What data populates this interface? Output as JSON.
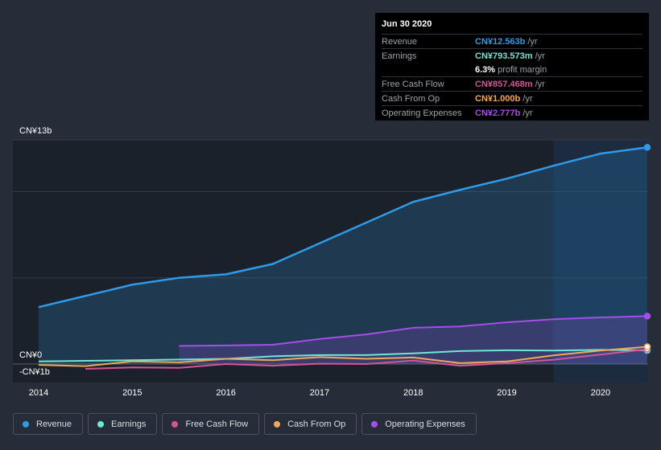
{
  "tooltip": {
    "date": "Jun 30 2020",
    "rows": [
      {
        "label": "Revenue",
        "value": "CN¥12.563b",
        "unit": "/yr",
        "color": "#2f9be8"
      },
      {
        "label": "Earnings",
        "value": "CN¥793.573m",
        "unit": "/yr",
        "color": "#6ee7d5"
      },
      {
        "label": "",
        "value": "6.3%",
        "unit": "profit margin",
        "color": "#ffffff"
      },
      {
        "label": "Free Cash Flow",
        "value": "CN¥857.468m",
        "unit": "/yr",
        "color": "#d6539a"
      },
      {
        "label": "Cash From Op",
        "value": "CN¥1.000b",
        "unit": "/yr",
        "color": "#eea95a"
      },
      {
        "label": "Operating Expenses",
        "value": "CN¥2.777b",
        "unit": "/yr",
        "color": "#a54ee8"
      }
    ]
  },
  "legend": [
    {
      "label": "Revenue",
      "color": "#2f9be8"
    },
    {
      "label": "Earnings",
      "color": "#6ee7d5"
    },
    {
      "label": "Free Cash Flow",
      "color": "#d6539a"
    },
    {
      "label": "Cash From Op",
      "color": "#eea95a"
    },
    {
      "label": "Operating Expenses",
      "color": "#a54ee8"
    }
  ],
  "chart_data": {
    "type": "area",
    "title": "",
    "xlabel": "",
    "ylabel": "",
    "unit": "CN¥ billions",
    "ylim": [
      -1,
      13
    ],
    "xlim": [
      2014,
      2020.5
    ],
    "y_labels": [
      {
        "value": 13,
        "text": "CN¥13b"
      },
      {
        "value": 0,
        "text": "CN¥0"
      },
      {
        "value": -1,
        "text": "-CN¥1b"
      }
    ],
    "x_ticks": [
      {
        "value": 2014,
        "label": "2014"
      },
      {
        "value": 2015,
        "label": "2015"
      },
      {
        "value": 2016,
        "label": "2016"
      },
      {
        "value": 2017,
        "label": "2017"
      },
      {
        "value": 2018,
        "label": "2018"
      },
      {
        "value": 2019,
        "label": "2019"
      },
      {
        "value": 2020,
        "label": "2020"
      }
    ],
    "highlight_from": 2019.5,
    "series": [
      {
        "name": "Revenue",
        "color": "#2f9be8",
        "fill": true,
        "points": [
          [
            2014,
            3.3
          ],
          [
            2014.5,
            3.95
          ],
          [
            2015,
            4.6
          ],
          [
            2015.5,
            5.0
          ],
          [
            2016,
            5.2
          ],
          [
            2016.5,
            5.8
          ],
          [
            2017,
            7.0
          ],
          [
            2017.5,
            8.2
          ],
          [
            2018,
            9.4
          ],
          [
            2018.5,
            10.1
          ],
          [
            2019,
            10.75
          ],
          [
            2019.5,
            11.5
          ],
          [
            2020,
            12.2
          ],
          [
            2020.5,
            12.563
          ]
        ]
      },
      {
        "name": "Operating Expenses",
        "color": "#a54ee8",
        "fill": true,
        "points": [
          [
            2015.5,
            1.05
          ],
          [
            2016,
            1.08
          ],
          [
            2016.5,
            1.12
          ],
          [
            2017,
            1.45
          ],
          [
            2017.5,
            1.72
          ],
          [
            2018,
            2.1
          ],
          [
            2018.5,
            2.18
          ],
          [
            2019,
            2.42
          ],
          [
            2019.5,
            2.6
          ],
          [
            2020,
            2.7
          ],
          [
            2020.5,
            2.777
          ]
        ]
      },
      {
        "name": "Earnings",
        "color": "#6ee7d5",
        "fill": false,
        "points": [
          [
            2014,
            0.15
          ],
          [
            2015,
            0.22
          ],
          [
            2016,
            0.3
          ],
          [
            2016.5,
            0.45
          ],
          [
            2017,
            0.52
          ],
          [
            2017.5,
            0.52
          ],
          [
            2018,
            0.62
          ],
          [
            2018.5,
            0.75
          ],
          [
            2019,
            0.8
          ],
          [
            2019.5,
            0.78
          ],
          [
            2020,
            0.82
          ],
          [
            2020.5,
            0.794
          ]
        ]
      },
      {
        "name": "Free Cash Flow",
        "color": "#d6539a",
        "fill": false,
        "points": [
          [
            2014.5,
            -0.28
          ],
          [
            2015,
            -0.2
          ],
          [
            2015.5,
            -0.22
          ],
          [
            2016,
            0.0
          ],
          [
            2016.5,
            -0.1
          ],
          [
            2017,
            0.02
          ],
          [
            2017.5,
            0.0
          ],
          [
            2018,
            0.2
          ],
          [
            2018.5,
            -0.1
          ],
          [
            2019,
            0.05
          ],
          [
            2019.5,
            0.25
          ],
          [
            2020,
            0.55
          ],
          [
            2020.5,
            0.857
          ]
        ]
      },
      {
        "name": "Cash From Op",
        "color": "#eea95a",
        "fill": false,
        "points": [
          [
            2014,
            -0.05
          ],
          [
            2014.5,
            -0.12
          ],
          [
            2015,
            0.15
          ],
          [
            2015.5,
            0.1
          ],
          [
            2016,
            0.3
          ],
          [
            2016.5,
            0.22
          ],
          [
            2017,
            0.4
          ],
          [
            2017.5,
            0.3
          ],
          [
            2018,
            0.38
          ],
          [
            2018.5,
            0.05
          ],
          [
            2019,
            0.15
          ],
          [
            2019.5,
            0.5
          ],
          [
            2020,
            0.78
          ],
          [
            2020.5,
            1.0
          ]
        ]
      }
    ]
  }
}
